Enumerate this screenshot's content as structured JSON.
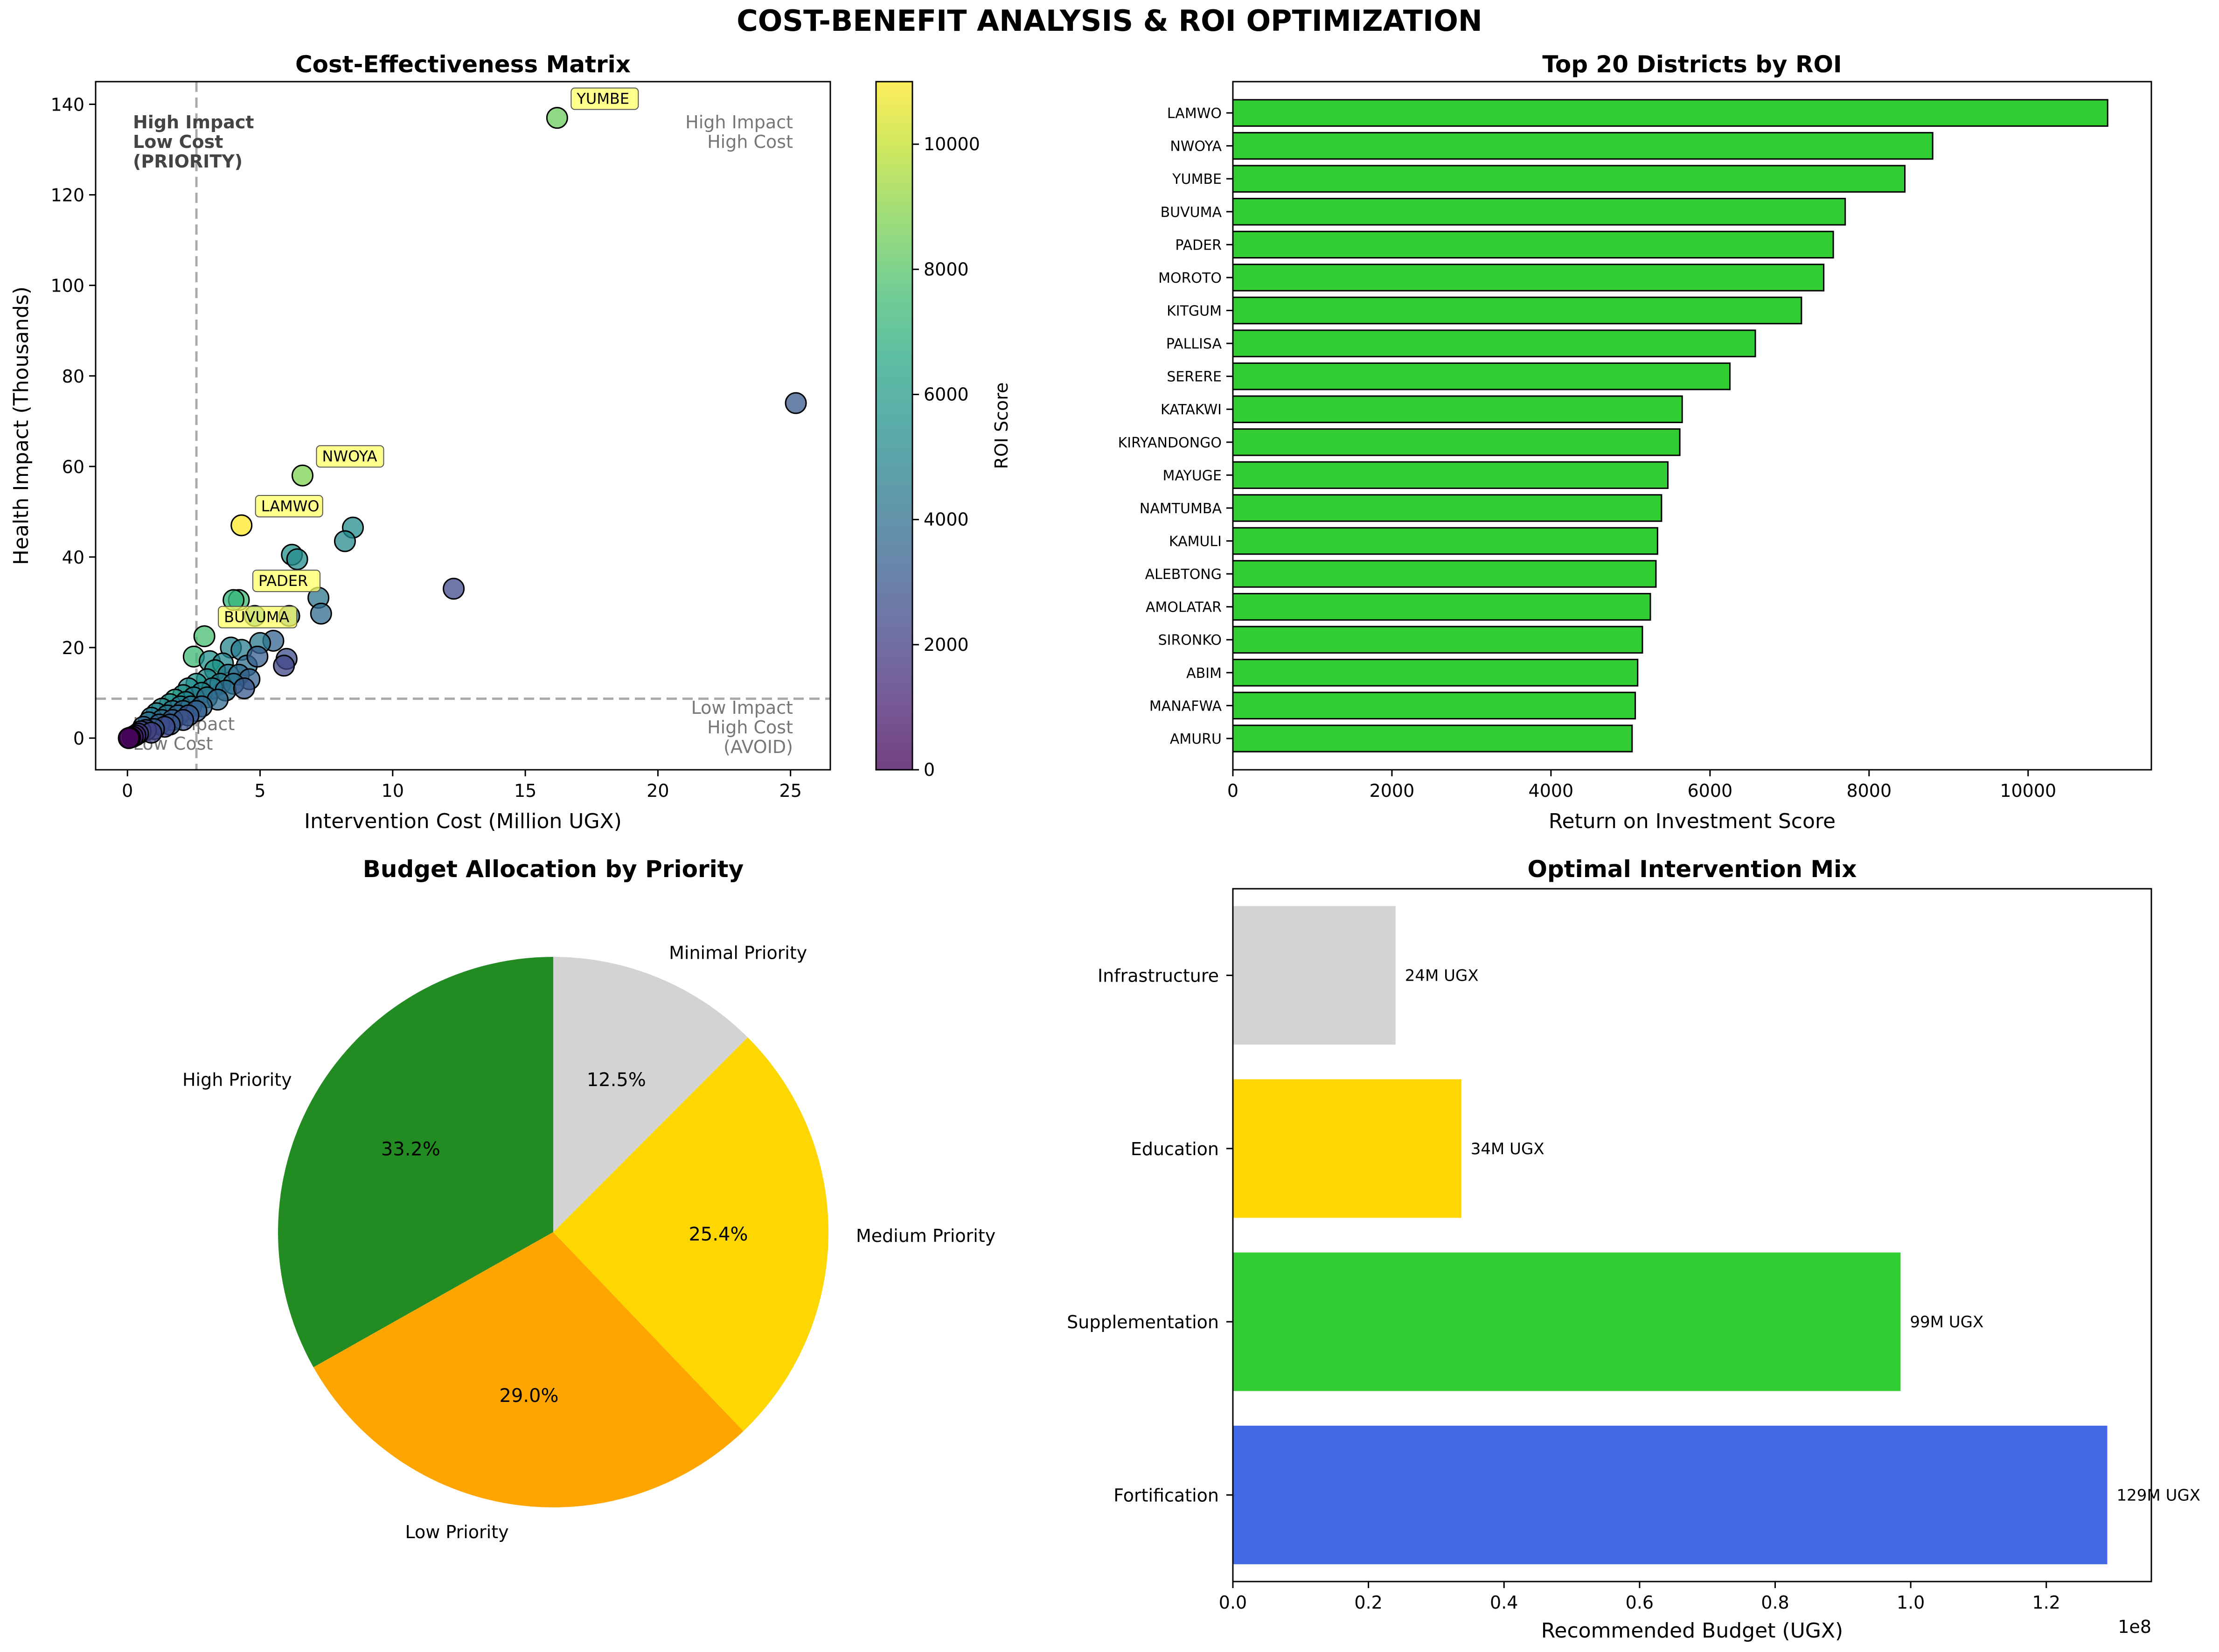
{
  "page": {
    "title": "COST-BENEFIT ANALYSIS & ROI OPTIMIZATION"
  },
  "colors": {
    "bar_green": "#32cd32",
    "pie_high": "#228b22",
    "pie_low": "#ffa500",
    "pie_medium": "#ffd700",
    "pie_minimal": "#d3d3d3",
    "fortification": "#4169e1",
    "label_box": "#ffff66",
    "guide": "#aaaaaa"
  },
  "chart_data": [
    {
      "id": "scatter",
      "type": "scatter",
      "title": "Cost-Effectiveness Matrix",
      "xlabel": "Intervention Cost (Million UGX)",
      "ylabel": "Health Impact (Thousands)",
      "xlim": [
        -1.2,
        26.5
      ],
      "ylim": [
        -7,
        145
      ],
      "xticks": [
        0,
        5,
        10,
        15,
        20,
        25
      ],
      "yticks": [
        0,
        20,
        40,
        60,
        80,
        100,
        120,
        140
      ],
      "grid": false,
      "colorbar": {
        "label": "ROI Score",
        "min": 0,
        "max": 11000,
        "ticks": [
          0,
          2000,
          4000,
          6000,
          8000,
          10000
        ],
        "colormap": "viridis"
      },
      "guides": {
        "x": 2.6,
        "y": 8.7
      },
      "quadrants": [
        {
          "text": "High Impact\nLow Cost\n(PRIORITY)",
          "position": "top-left",
          "bold": true
        },
        {
          "text": "High Impact\nHigh Cost",
          "position": "top-right",
          "bold": false
        },
        {
          "text": "Low Impact\nHigh Cost\n(AVOID)",
          "position": "bottom-right",
          "bold": false
        },
        {
          "text": "Low Impact\nLow Cost",
          "position": "bottom-left",
          "bold": false
        }
      ],
      "points": [
        {
          "x": 16.2,
          "y": 137,
          "roi": 8450,
          "label": "YUMBE"
        },
        {
          "x": 6.6,
          "y": 58,
          "roi": 8800,
          "label": "NWOYA"
        },
        {
          "x": 4.3,
          "y": 47,
          "roi": 11000,
          "label": "LAMWO"
        },
        {
          "x": 4.2,
          "y": 30.5,
          "roi": 7550,
          "label": "PADER"
        },
        {
          "x": 2.9,
          "y": 22.5,
          "roi": 7700,
          "label": "BUVUMA"
        },
        {
          "x": 25.2,
          "y": 74,
          "roi": 3000
        },
        {
          "x": 12.3,
          "y": 33,
          "roi": 2500
        },
        {
          "x": 8.5,
          "y": 46.5,
          "roi": 5400
        },
        {
          "x": 8.2,
          "y": 43.5,
          "roi": 5200
        },
        {
          "x": 6.2,
          "y": 40.5,
          "roi": 5600
        },
        {
          "x": 6.4,
          "y": 39.5,
          "roi": 5300
        },
        {
          "x": 7.2,
          "y": 31,
          "roi": 4300
        },
        {
          "x": 7.3,
          "y": 27.5,
          "roi": 3800
        },
        {
          "x": 6.1,
          "y": 27,
          "roi": 4000
        },
        {
          "x": 4.0,
          "y": 30.5,
          "roi": 7200
        },
        {
          "x": 4.8,
          "y": 27,
          "roi": 5000
        },
        {
          "x": 5.5,
          "y": 21.5,
          "roi": 3500
        },
        {
          "x": 5.0,
          "y": 21,
          "roi": 4400
        },
        {
          "x": 6.0,
          "y": 17.5,
          "roi": 2600
        },
        {
          "x": 5.9,
          "y": 16,
          "roi": 2300
        },
        {
          "x": 3.9,
          "y": 20,
          "roi": 5000
        },
        {
          "x": 4.3,
          "y": 19.5,
          "roi": 4600
        },
        {
          "x": 2.5,
          "y": 18,
          "roi": 7500
        },
        {
          "x": 3.1,
          "y": 17,
          "roi": 5500
        },
        {
          "x": 3.6,
          "y": 16.5,
          "roi": 5100
        },
        {
          "x": 4.5,
          "y": 16,
          "roi": 4000
        },
        {
          "x": 4.9,
          "y": 18,
          "roi": 3300
        },
        {
          "x": 3.3,
          "y": 15,
          "roi": 6000
        },
        {
          "x": 3.8,
          "y": 14,
          "roi": 4500
        },
        {
          "x": 4.2,
          "y": 14,
          "roi": 3900
        },
        {
          "x": 4.6,
          "y": 13,
          "roi": 3400
        },
        {
          "x": 3.0,
          "y": 13,
          "roi": 5200
        },
        {
          "x": 3.5,
          "y": 12,
          "roi": 4800
        },
        {
          "x": 4.0,
          "y": 12,
          "roi": 4200
        },
        {
          "x": 2.6,
          "y": 12,
          "roi": 5800
        },
        {
          "x": 2.3,
          "y": 11,
          "roi": 5400
        },
        {
          "x": 3.2,
          "y": 11,
          "roi": 4600
        },
        {
          "x": 3.7,
          "y": 10.5,
          "roi": 4000
        },
        {
          "x": 4.4,
          "y": 11,
          "roi": 3000
        },
        {
          "x": 2.8,
          "y": 10,
          "roi": 5000
        },
        {
          "x": 2.1,
          "y": 9.5,
          "roi": 5600
        },
        {
          "x": 2.5,
          "y": 9,
          "roi": 4700
        },
        {
          "x": 3.0,
          "y": 9,
          "roi": 4300
        },
        {
          "x": 3.4,
          "y": 8.5,
          "roi": 3800
        },
        {
          "x": 1.8,
          "y": 8.5,
          "roi": 6200
        },
        {
          "x": 2.2,
          "y": 8,
          "roi": 5100
        },
        {
          "x": 1.6,
          "y": 7.5,
          "roi": 5500
        },
        {
          "x": 2.0,
          "y": 7,
          "roi": 4800
        },
        {
          "x": 2.4,
          "y": 7,
          "roi": 4200
        },
        {
          "x": 2.8,
          "y": 7,
          "roi": 3700
        },
        {
          "x": 1.3,
          "y": 6.5,
          "roi": 5200
        },
        {
          "x": 1.7,
          "y": 6,
          "roi": 4600
        },
        {
          "x": 2.1,
          "y": 6,
          "roi": 4000
        },
        {
          "x": 2.6,
          "y": 6,
          "roi": 3300
        },
        {
          "x": 1.1,
          "y": 5.5,
          "roi": 4900
        },
        {
          "x": 1.5,
          "y": 5,
          "roi": 4300
        },
        {
          "x": 1.9,
          "y": 5,
          "roi": 3700
        },
        {
          "x": 2.3,
          "y": 5,
          "roi": 3100
        },
        {
          "x": 0.9,
          "y": 4.5,
          "roi": 4400
        },
        {
          "x": 1.3,
          "y": 4,
          "roi": 3900
        },
        {
          "x": 1.7,
          "y": 4,
          "roi": 3300
        },
        {
          "x": 2.1,
          "y": 4,
          "roi": 2800
        },
        {
          "x": 0.8,
          "y": 3.5,
          "roi": 4000
        },
        {
          "x": 1.2,
          "y": 3,
          "roi": 3400
        },
        {
          "x": 1.6,
          "y": 3,
          "roi": 2900
        },
        {
          "x": 1.4,
          "y": 2.5,
          "roi": 2500
        },
        {
          "x": 0.6,
          "y": 2.5,
          "roi": 3500
        },
        {
          "x": 1.0,
          "y": 2,
          "roi": 3000
        },
        {
          "x": 0.7,
          "y": 1.8,
          "roi": 2600
        },
        {
          "x": 0.5,
          "y": 1.5,
          "roi": 2400
        },
        {
          "x": 0.9,
          "y": 1.2,
          "roi": 2000
        },
        {
          "x": 0.4,
          "y": 1,
          "roi": 1800
        },
        {
          "x": 0.3,
          "y": 0.6,
          "roi": 1300
        },
        {
          "x": 0.2,
          "y": 0.3,
          "roi": 800
        },
        {
          "x": 0.1,
          "y": 0.1,
          "roi": 300
        },
        {
          "x": 0.05,
          "y": 0,
          "roi": 0
        }
      ]
    },
    {
      "id": "roi_bars",
      "type": "bar",
      "orientation": "horizontal",
      "title": "Top 20 Districts by ROI",
      "xlabel": "Return on Investment Score",
      "xlim": [
        0,
        11550
      ],
      "xticks": [
        0,
        2000,
        4000,
        6000,
        8000,
        10000
      ],
      "categories": [
        "LAMWO",
        "NWOYA",
        "YUMBE",
        "BUVUMA",
        "PADER",
        "MOROTO",
        "KITGUM",
        "PALLISA",
        "SERERE",
        "KATAKWI",
        "KIRYANDONGO",
        "MAYUGE",
        "NAMTUMBA",
        "KAMULI",
        "ALEBTONG",
        "AMOLATAR",
        "SIRONKO",
        "ABIM",
        "MANAFWA",
        "AMURU"
      ],
      "values": [
        11000,
        8800,
        8450,
        7700,
        7550,
        7430,
        7150,
        6570,
        6250,
        5650,
        5620,
        5470,
        5390,
        5340,
        5320,
        5250,
        5150,
        5090,
        5060,
        5020
      ]
    },
    {
      "id": "pie",
      "type": "pie",
      "title": "Budget Allocation by Priority",
      "slices": [
        {
          "label": "High Priority",
          "value": 33.2,
          "pct_label": "33.2%"
        },
        {
          "label": "Low Priority",
          "value": 29.0,
          "pct_label": "29.0%"
        },
        {
          "label": "Medium Priority",
          "value": 25.4,
          "pct_label": "25.4%"
        },
        {
          "label": "Minimal Priority",
          "value": 12.5,
          "pct_label": "12.5%"
        }
      ]
    },
    {
      "id": "mix",
      "type": "bar",
      "orientation": "horizontal",
      "title": "Optimal Intervention Mix",
      "xlabel": "Recommended Budget (UGX)",
      "offset_text": "1e8",
      "xlim": [
        0,
        1.355
      ],
      "xticks": [
        0.0,
        0.2,
        0.4,
        0.6,
        0.8,
        1.0,
        1.2
      ],
      "xtick_labels": [
        "0.0",
        "0.2",
        "0.4",
        "0.6",
        "0.8",
        "1.0",
        "1.2"
      ],
      "categories": [
        "Fortification",
        "Supplementation",
        "Education",
        "Infrastructure"
      ],
      "values": [
        1.29,
        0.985,
        0.337,
        0.24
      ],
      "value_labels": [
        "129M UGX",
        "99M UGX",
        "34M UGX",
        "24M UGX"
      ]
    }
  ]
}
